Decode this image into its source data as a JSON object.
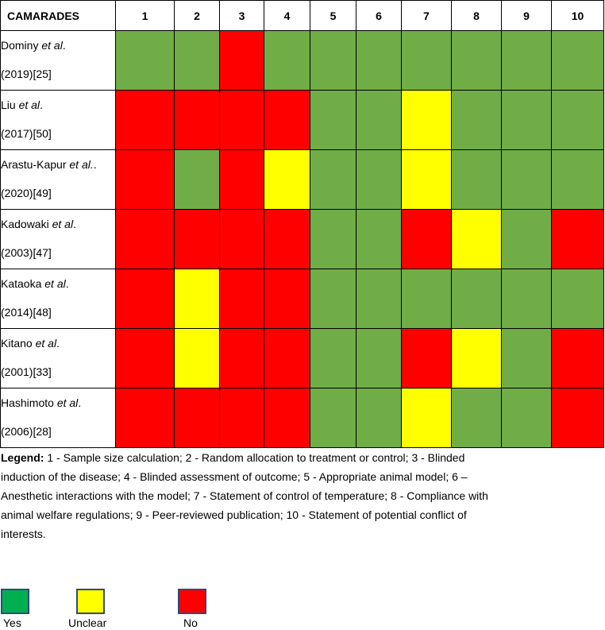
{
  "table": {
    "header": [
      "CAMARADES",
      "1",
      "2",
      "3",
      "4",
      "5",
      "6",
      "7",
      "8",
      "9",
      "10"
    ],
    "rows": [
      {
        "author": "Dominy",
        "etal": "et al",
        "rest": "(2019)[25]",
        "cells": [
          "green",
          "green",
          "red",
          "green",
          "green",
          "green",
          "green",
          "green",
          "green",
          "green"
        ]
      },
      {
        "author": "Liu",
        "etal": "et al",
        "rest": "(2017)[50]",
        "cells": [
          "red",
          "red",
          "red",
          "red",
          "green",
          "green",
          "yellow",
          "green",
          "green",
          "green"
        ]
      },
      {
        "author": "Arastu-Kapur",
        "etal": "et al.",
        "rest": "(2020)[49]",
        "cells": [
          "red",
          "green",
          "red",
          "yellow",
          "green",
          "green",
          "yellow",
          "green",
          "green",
          "green"
        ]
      },
      {
        "author": "Kadowaki",
        "etal": "et al",
        "rest": "(2003)[47]",
        "cells": [
          "red",
          "red",
          "red",
          "red",
          "green",
          "green",
          "red",
          "yellow",
          "green",
          "red"
        ]
      },
      {
        "author": "Kataoka",
        "etal": "et al",
        "rest": "(2014)[48]",
        "cells": [
          "red",
          "yellow",
          "red",
          "red",
          "green",
          "green",
          "green",
          "green",
          "green",
          "green"
        ]
      },
      {
        "author": "Kitano",
        "etal": "et al",
        "rest": "(2001)[33]",
        "cells": [
          "red",
          "yellow",
          "red",
          "red",
          "green",
          "green",
          "red",
          "yellow",
          "green",
          "red"
        ]
      },
      {
        "author": "Hashimoto",
        "etal": "et al",
        "rest": "(2006)[28]",
        "cells": [
          "red",
          "red",
          "red",
          "red",
          "green",
          "green",
          "yellow",
          "green",
          "green",
          "red"
        ]
      }
    ]
  },
  "legend": {
    "label": "Legend:",
    "text": " 1 - Sample size calculation; 2 - Random allocation to treatment or control; 3 - Blinded induction of the disease; 4 - Blinded assessment of outcome; 5 - Appropriate animal model; 6 – Anesthetic interactions with the model; 7 - Statement of control of temperature; 8 - Compliance with animal welfare regulations; 9 - Peer-reviewed publication; 10 - Statement of potential conflict of interests."
  },
  "key": [
    {
      "label": "Yes",
      "color": "#00b050"
    },
    {
      "label": "Unclear",
      "color": "#ffff00"
    },
    {
      "label": "No",
      "color": "#ff0000"
    }
  ],
  "colors": {
    "green": "#70ad47",
    "yellow": "#ffff00",
    "red": "#ff0000"
  }
}
